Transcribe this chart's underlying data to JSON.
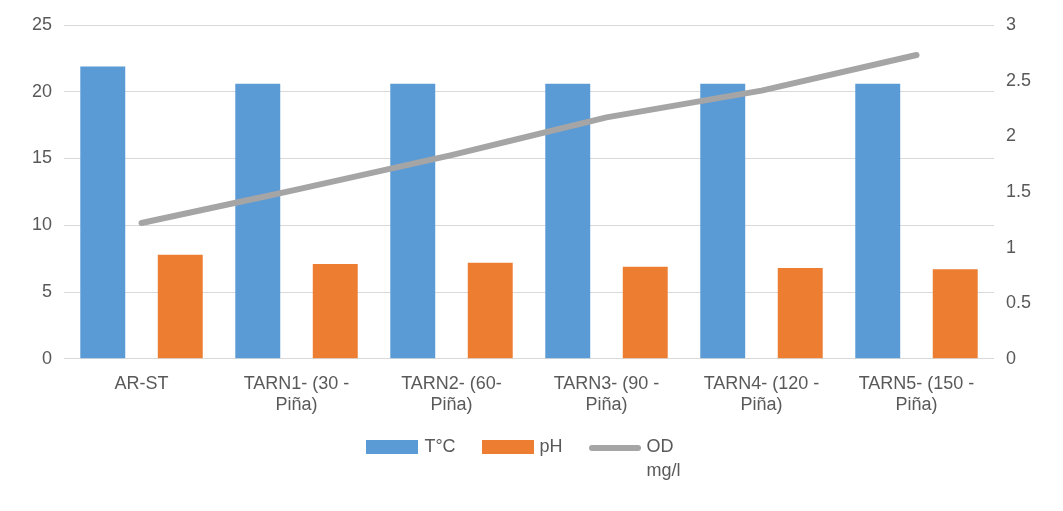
{
  "chart_data": {
    "type": "bar",
    "categories": [
      "AR-ST",
      "TARN1- (30 - Piña)",
      "TARN2- (60- Piña)",
      "TARN3- (90 - Piña)",
      "TARN4- (120 - Piña)",
      "TARN5- (150 - Piña)"
    ],
    "series": [
      {
        "name": "T°C",
        "color": "#5b9bd5",
        "values": [
          21.9,
          20.6,
          20.6,
          20.6,
          20.6,
          20.6
        ]
      },
      {
        "name": "pH",
        "color": "#ed7d31",
        "values": [
          7.8,
          7.1,
          7.2,
          6.9,
          6.8,
          6.7
        ]
      },
      {
        "name": "OD mg/l",
        "type": "line",
        "axis": "y2",
        "color": "#a5a5a5",
        "values": [
          1.22,
          1.52,
          1.83,
          2.17,
          2.41,
          2.73
        ]
      }
    ],
    "ylim": [
      0,
      25
    ],
    "yticks": [
      0,
      5,
      10,
      15,
      20,
      25
    ],
    "y2lim": [
      0,
      3
    ],
    "y2ticks": [
      0,
      0.5,
      1,
      1.5,
      2,
      2.5,
      3
    ],
    "grid": "y",
    "legend": "bottom",
    "marker": "none",
    "line_style": "solid"
  }
}
